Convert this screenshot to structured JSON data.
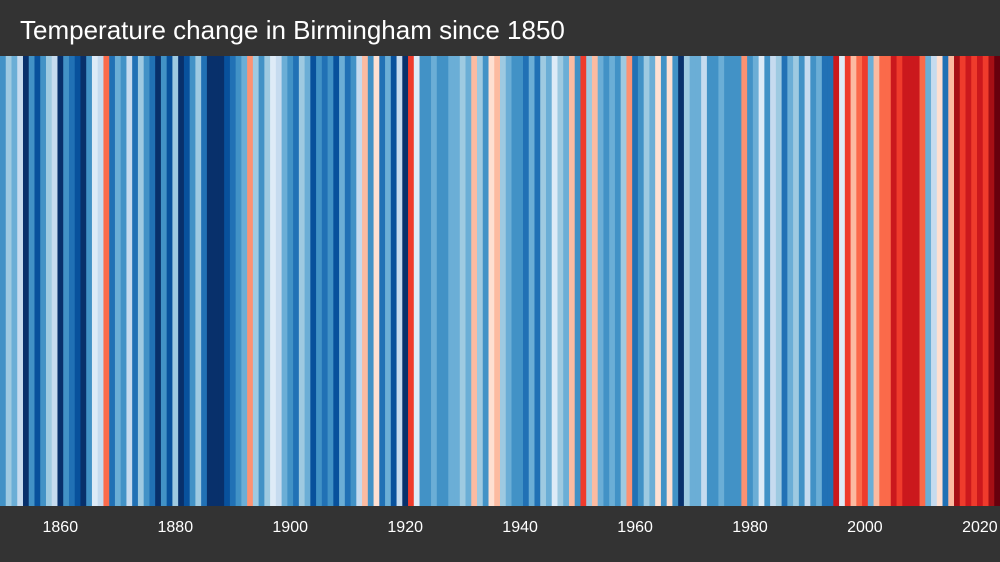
{
  "chart_data": {
    "type": "heatmap",
    "title": "Temperature change in Birmingham since 1850",
    "x_start": 1850,
    "x_end": 2023,
    "x_ticks": [
      "1860",
      "1880",
      "1900",
      "1920",
      "1940",
      "1960",
      "1980",
      "2000",
      "2020"
    ],
    "colorscale": [
      "#08306b",
      "#08519c",
      "#2171b5",
      "#4292c6",
      "#6baed6",
      "#9ecae1",
      "#c6dbef",
      "#deebf7",
      "#fee0d2",
      "#fcbba1",
      "#fc9272",
      "#fb6a4a",
      "#ef3b2c",
      "#cb181d",
      "#a50f15",
      "#67000d"
    ],
    "years": [
      1850,
      1851,
      1852,
      1853,
      1854,
      1855,
      1856,
      1857,
      1858,
      1859,
      1860,
      1861,
      1862,
      1863,
      1864,
      1865,
      1866,
      1867,
      1868,
      1869,
      1870,
      1871,
      1872,
      1873,
      1874,
      1875,
      1876,
      1877,
      1878,
      1879,
      1880,
      1881,
      1882,
      1883,
      1884,
      1885,
      1886,
      1887,
      1888,
      1889,
      1890,
      1891,
      1892,
      1893,
      1894,
      1895,
      1896,
      1897,
      1898,
      1899,
      1900,
      1901,
      1902,
      1903,
      1904,
      1905,
      1906,
      1907,
      1908,
      1909,
      1910,
      1911,
      1912,
      1913,
      1914,
      1915,
      1916,
      1917,
      1918,
      1919,
      1920,
      1921,
      1922,
      1923,
      1924,
      1925,
      1926,
      1927,
      1928,
      1929,
      1930,
      1931,
      1932,
      1933,
      1934,
      1935,
      1936,
      1937,
      1938,
      1939,
      1940,
      1941,
      1942,
      1943,
      1944,
      1945,
      1946,
      1947,
      1948,
      1949,
      1950,
      1951,
      1952,
      1953,
      1954,
      1955,
      1956,
      1957,
      1958,
      1959,
      1960,
      1961,
      1962,
      1963,
      1964,
      1965,
      1966,
      1967,
      1968,
      1969,
      1970,
      1971,
      1972,
      1973,
      1974,
      1975,
      1976,
      1977,
      1978,
      1979,
      1980,
      1981,
      1982,
      1983,
      1984,
      1985,
      1986,
      1987,
      1988,
      1989,
      1990,
      1991,
      1992,
      1993,
      1994,
      1995,
      1996,
      1997,
      1998,
      1999,
      2000,
      2001,
      2002,
      2003,
      2004,
      2005,
      2006,
      2007,
      2008,
      2009,
      2010,
      2011,
      2012,
      2013,
      2014,
      2015,
      2016,
      2017,
      2018,
      2019,
      2020,
      2021,
      2022,
      2023
    ],
    "values": [
      3,
      5,
      4,
      6,
      0,
      3,
      1,
      3,
      5,
      6,
      0,
      3,
      2,
      1,
      0,
      3,
      7,
      6,
      11,
      2,
      4,
      3,
      6,
      2,
      5,
      3,
      2,
      0,
      3,
      1,
      5,
      0,
      1,
      3,
      5,
      2,
      0,
      0,
      0,
      1,
      2,
      3,
      4,
      10,
      5,
      3,
      5,
      7,
      6,
      4,
      3,
      2,
      5,
      4,
      1,
      3,
      2,
      3,
      1,
      4,
      2,
      3,
      6,
      9,
      3,
      8,
      2,
      4,
      1,
      6,
      0,
      12,
      7,
      3,
      3,
      4,
      3,
      3,
      4,
      4,
      5,
      4,
      9,
      5,
      3,
      8,
      9,
      5,
      4,
      3,
      3,
      2,
      4,
      2,
      5,
      4,
      7,
      5,
      4,
      9,
      3,
      12,
      5,
      9,
      4,
      3,
      4,
      3,
      5,
      10,
      2,
      3,
      5,
      4,
      8,
      3,
      8,
      3,
      0,
      5,
      4,
      4,
      6,
      3,
      3,
      4,
      3,
      3,
      3,
      10,
      3,
      4,
      7,
      3,
      6,
      5,
      2,
      4,
      5,
      3,
      6,
      3,
      4,
      2,
      2,
      13,
      7,
      12,
      9,
      11,
      12,
      4,
      9,
      11,
      11,
      13,
      12,
      13,
      13,
      13,
      11,
      4,
      6,
      8,
      2,
      9,
      14,
      12,
      13,
      12,
      13,
      12,
      14,
      15
    ]
  }
}
